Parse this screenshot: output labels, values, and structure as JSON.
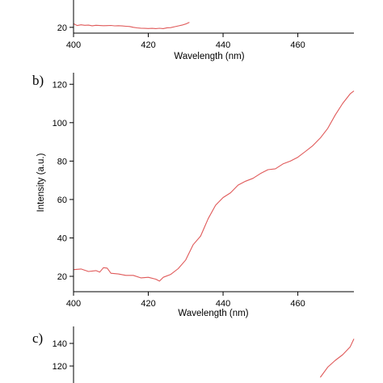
{
  "panels": [
    {
      "id": "a",
      "label": "",
      "xlabel": "Wavelength (nm)",
      "ylabel": ""
    },
    {
      "id": "b",
      "label": "b)",
      "xlabel": "Wavelength (nm)",
      "ylabel": "Intensity (a.u.)"
    },
    {
      "id": "c",
      "label": "c)",
      "xlabel": "",
      "ylabel": ""
    }
  ],
  "chart_data": [
    {
      "type": "line",
      "title": "",
      "xlabel": "Wavelength (nm)",
      "ylabel": "",
      "xlim": [
        400,
        475
      ],
      "ylim": [
        12,
        60
      ],
      "xticks": [
        400,
        420,
        440,
        460
      ],
      "yticks": [
        20
      ],
      "grid": false,
      "color": "#e05a5a",
      "series": [
        {
          "x": [
            400,
            401,
            402,
            403,
            404,
            405,
            406,
            407,
            408,
            409,
            410,
            411,
            412,
            413,
            414,
            415,
            416,
            417,
            418,
            419,
            420,
            421,
            422,
            423,
            424,
            425,
            426,
            427,
            428,
            429,
            430,
            431
          ],
          "y": [
            25,
            22.5,
            23.5,
            22.8,
            23,
            22.2,
            22.8,
            22.5,
            22.3,
            22.4,
            22.6,
            22.1,
            22.3,
            21.9,
            21.5,
            21.2,
            20,
            19.2,
            18.8,
            18.6,
            18.4,
            18.6,
            18.2,
            18.7,
            18.3,
            19.4,
            19.6,
            20.8,
            21.9,
            23.1,
            24.6,
            27
          ]
        }
      ]
    },
    {
      "type": "line",
      "title": "",
      "xlabel": "Wavelength (nm)",
      "ylabel": "Intensity (a.u.)",
      "xlim": [
        400,
        475
      ],
      "ylim": [
        12,
        126
      ],
      "xticks": [
        400,
        420,
        440,
        460
      ],
      "yticks": [
        20,
        40,
        60,
        80,
        100,
        120
      ],
      "grid": false,
      "color": "#e05a5a",
      "series": [
        {
          "x": [
            400,
            402,
            404,
            406,
            407,
            408,
            409,
            410,
            412,
            414,
            416,
            418,
            420,
            422,
            423,
            424,
            426,
            428,
            430,
            432,
            434,
            436,
            438,
            440,
            442,
            444,
            446,
            448,
            450,
            452,
            454,
            456,
            458,
            460,
            462,
            464,
            466,
            468,
            470,
            472,
            474,
            475
          ],
          "y": [
            23.5,
            23.8,
            22.5,
            23,
            22.2,
            24.5,
            24.3,
            21.6,
            21.2,
            20.5,
            20.5,
            19.2,
            19.5,
            18.5,
            17.5,
            19.5,
            21,
            24,
            28.5,
            36.5,
            41,
            50,
            57,
            61,
            63.5,
            67.5,
            69.5,
            71,
            73.5,
            75.5,
            76,
            78.5,
            80,
            82,
            85,
            88,
            92,
            97,
            104,
            110,
            115,
            116.5
          ]
        }
      ]
    },
    {
      "type": "line",
      "title": "",
      "xlabel": "",
      "ylabel": "",
      "ylim": [
        105,
        155
      ],
      "yticks": [
        120,
        140
      ],
      "grid": false,
      "color": "#e05a5a",
      "series": [
        {
          "x": [
            466,
            468,
            470,
            472,
            474,
            475
          ],
          "y": [
            110,
            119,
            125,
            130,
            137,
            144
          ]
        }
      ]
    }
  ]
}
